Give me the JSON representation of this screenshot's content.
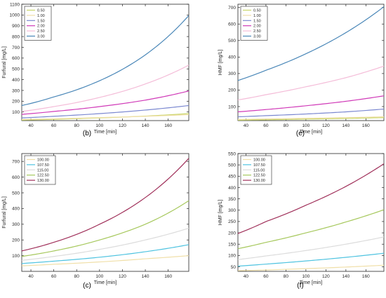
{
  "chart_data": [
    {
      "type": "line",
      "panel_label": "(b)",
      "xlabel": "Time [min]",
      "ylabel": "Furfural [mg/L]",
      "xlim": [
        32,
        178
      ],
      "ylim": [
        20,
        1100
      ],
      "xticks": [
        40,
        60,
        80,
        100,
        120,
        140,
        160
      ],
      "yticks": [
        100,
        200,
        300,
        400,
        500,
        600,
        700,
        800,
        900,
        1000,
        1100
      ],
      "legend_position": "top-left",
      "series": [
        {
          "name": "0.50",
          "color": "#c8d66a",
          "x": [
            32,
            60,
            100,
            140,
            178
          ],
          "y": [
            25,
            32,
            45,
            62,
            85
          ]
        },
        {
          "name": "1.00",
          "color": "#f0dfa8",
          "x": [
            32,
            60,
            100,
            140,
            178
          ],
          "y": [
            30,
            37,
            48,
            60,
            75
          ]
        },
        {
          "name": "1.50",
          "color": "#7b88d0",
          "x": [
            32,
            60,
            100,
            140,
            178
          ],
          "y": [
            45,
            60,
            85,
            118,
            160
          ]
        },
        {
          "name": "2.00",
          "color": "#d03ab8",
          "x": [
            32,
            60,
            100,
            140,
            178
          ],
          "y": [
            78,
            105,
            150,
            210,
            295
          ]
        },
        {
          "name": "2.50",
          "color": "#f4bcd8",
          "x": [
            32,
            60,
            100,
            140,
            178
          ],
          "y": [
            105,
            150,
            235,
            360,
            535
          ]
        },
        {
          "name": "3.00",
          "color": "#4a87b8",
          "x": [
            32,
            60,
            100,
            140,
            178
          ],
          "y": [
            160,
            240,
            390,
            630,
            995
          ]
        }
      ]
    },
    {
      "type": "line",
      "panel_label": "(e)",
      "xlabel": "Time [min]",
      "ylabel": "HMF [mg/L]",
      "xlim": [
        32,
        178
      ],
      "ylim": [
        15,
        720
      ],
      "xticks": [
        40,
        60,
        80,
        100,
        120,
        140,
        160
      ],
      "yticks": [
        100,
        200,
        300,
        400,
        500,
        600,
        700
      ],
      "legend_position": "top-left",
      "series": [
        {
          "name": "0.50",
          "color": "#c8d66a",
          "x": [
            32,
            60,
            100,
            140,
            178
          ],
          "y": [
            18,
            20,
            24,
            28,
            33
          ]
        },
        {
          "name": "1.00",
          "color": "#f0dfa8",
          "x": [
            32,
            60,
            100,
            140,
            178
          ],
          "y": [
            22,
            25,
            29,
            33,
            38
          ]
        },
        {
          "name": "1.50",
          "color": "#7b88d0",
          "x": [
            32,
            60,
            100,
            140,
            178
          ],
          "y": [
            38,
            45,
            55,
            68,
            85
          ]
        },
        {
          "name": "2.00",
          "color": "#d03ab8",
          "x": [
            32,
            60,
            100,
            140,
            178
          ],
          "y": [
            68,
            82,
            105,
            132,
            165
          ]
        },
        {
          "name": "2.50",
          "color": "#f4bcd8",
          "x": [
            32,
            60,
            100,
            140,
            178
          ],
          "y": [
            140,
            172,
            220,
            275,
            345
          ]
        },
        {
          "name": "3.00",
          "color": "#4a87b8",
          "x": [
            32,
            60,
            100,
            140,
            178
          ],
          "y": [
            258,
            320,
            420,
            548,
            705
          ]
        }
      ]
    },
    {
      "type": "line",
      "panel_label": "(c)",
      "xlabel": "Time [min]",
      "ylabel": "Furfural [mg/L]",
      "xlim": [
        32,
        178
      ],
      "ylim": [
        0,
        750
      ],
      "xticks": [
        40,
        60,
        80,
        100,
        120,
        140,
        160
      ],
      "yticks": [
        100,
        200,
        300,
        400,
        500,
        600,
        700
      ],
      "legend_position": "top-left",
      "series": [
        {
          "name": "100.00",
          "color": "#f0dfa8",
          "x": [
            32,
            60,
            100,
            140,
            178
          ],
          "y": [
            35,
            45,
            60,
            80,
            100
          ]
        },
        {
          "name": "107.50",
          "color": "#4ec3e0",
          "x": [
            32,
            60,
            100,
            140,
            178
          ],
          "y": [
            50,
            65,
            90,
            125,
            170
          ]
        },
        {
          "name": "115.00",
          "color": "#dcdcdc",
          "x": [
            32,
            60,
            100,
            140,
            178
          ],
          "y": [
            70,
            95,
            140,
            200,
            275
          ]
        },
        {
          "name": "122.50",
          "color": "#a6c85c",
          "x": [
            32,
            60,
            100,
            140,
            178
          ],
          "y": [
            95,
            130,
            200,
            300,
            450
          ]
        },
        {
          "name": "130.00",
          "color": "#a0305a",
          "x": [
            32,
            60,
            100,
            140,
            178
          ],
          "y": [
            130,
            185,
            300,
            470,
            720
          ]
        }
      ]
    },
    {
      "type": "line",
      "panel_label": "(f)",
      "xlabel": "Time [min]",
      "ylabel": "HMF [mg/L]",
      "xlim": [
        32,
        178
      ],
      "ylim": [
        30,
        550
      ],
      "xticks": [
        40,
        60,
        80,
        100,
        120,
        140,
        160
      ],
      "yticks": [
        50,
        100,
        150,
        200,
        250,
        300,
        350,
        400,
        450,
        500,
        550
      ],
      "legend_position": "top-left",
      "series": [
        {
          "name": "100.00",
          "color": "#f0dfa8",
          "x": [
            32,
            60,
            100,
            140,
            178
          ],
          "y": [
            33,
            36,
            42,
            49,
            57
          ]
        },
        {
          "name": "107.50",
          "color": "#4ec3e0",
          "x": [
            32,
            60,
            100,
            140,
            178
          ],
          "y": [
            53,
            62,
            76,
            92,
            110
          ]
        },
        {
          "name": "115.00",
          "color": "#dcdcdc",
          "x": [
            32,
            60,
            100,
            140,
            178
          ],
          "y": [
            82,
            98,
            122,
            150,
            182
          ]
        },
        {
          "name": "122.50",
          "color": "#a6c85c",
          "x": [
            32,
            60,
            100,
            140,
            178
          ],
          "y": [
            130,
            158,
            200,
            248,
            302
          ]
        },
        {
          "name": "130.00",
          "color": "#a0305a",
          "x": [
            32,
            60,
            100,
            140,
            178
          ],
          "y": [
            197,
            250,
            322,
            405,
            505
          ]
        }
      ]
    }
  ]
}
